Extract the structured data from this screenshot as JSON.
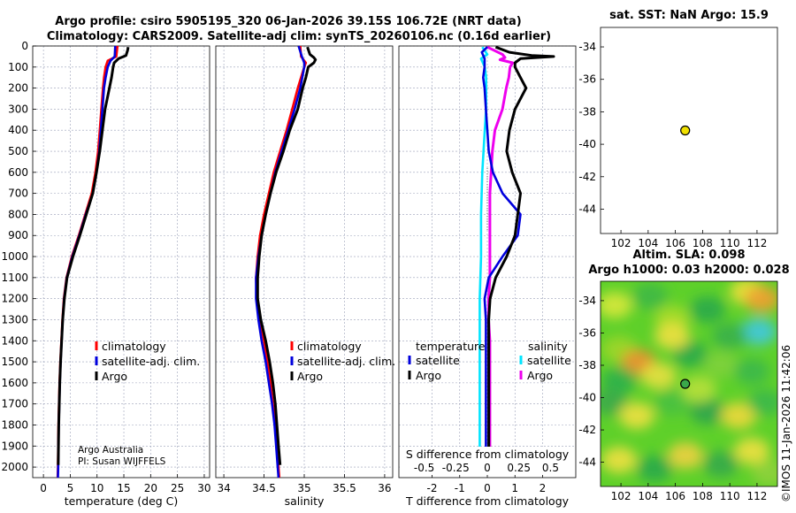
{
  "title_line1": "Argo profile: csiro 5905195_320 06-Jan-2026 39.15S 106.72E (NRT data)",
  "title_line2": "Climatology: CARS2009. Satellite-adj clim: synTS_20260106.nc (0.16d earlier)",
  "credit_line1": "Argo Australia",
  "credit_line2": "PI: Susan WIJFFELS",
  "copyright": "©IMOS 11-Jan-2026 11:42:06",
  "colors": {
    "climatology": "#ff0000",
    "satellite_adj": "#0000dd",
    "argo": "#000000",
    "sal_satellite": "#00e5ff",
    "sal_argo": "#ee00ee"
  },
  "chart_data": [
    {
      "id": "temperature",
      "type": "line",
      "xlabel": "temperature (deg C)",
      "ylabel": "",
      "xlim": [
        -2,
        31
      ],
      "ylim": [
        0,
        2050
      ],
      "y_reversed": true,
      "xticks": [
        0,
        5,
        10,
        15,
        20,
        25,
        30
      ],
      "yticks": [
        0,
        100,
        200,
        300,
        400,
        500,
        600,
        700,
        800,
        900,
        1000,
        1100,
        1200,
        1300,
        1400,
        1500,
        1600,
        1700,
        1800,
        1900,
        2000
      ],
      "legend": [
        "climatology",
        "satellite-adj. clim.",
        "Argo"
      ],
      "series": [
        {
          "name": "climatology",
          "depth": [
            0,
            50,
            70,
            100,
            150,
            200,
            300,
            400,
            500,
            600,
            700,
            800,
            900,
            1000,
            1100,
            1200,
            1300,
            1400,
            1500,
            1600,
            1700,
            1800,
            1900,
            2000,
            2050
          ],
          "values": [
            13.8,
            13.6,
            12.0,
            11.6,
            11.3,
            11.1,
            10.8,
            10.5,
            10.2,
            9.7,
            9.0,
            7.8,
            6.6,
            5.3,
            4.3,
            3.8,
            3.55,
            3.35,
            3.15,
            3.0,
            2.9,
            2.8,
            2.75,
            2.7,
            2.65
          ]
        },
        {
          "name": "satellite-adj. clim.",
          "depth": [
            0,
            50,
            70,
            100,
            150,
            200,
            300,
            400,
            500,
            600,
            700,
            800,
            900,
            1000,
            1100,
            1200,
            1300,
            1400,
            1500,
            1600,
            1700,
            1800,
            1900,
            2000,
            2050
          ],
          "values": [
            13.4,
            13.3,
            12.5,
            12.0,
            11.6,
            11.3,
            11.0,
            10.7,
            10.4,
            9.9,
            9.2,
            7.9,
            6.7,
            5.4,
            4.35,
            3.85,
            3.6,
            3.4,
            3.2,
            3.05,
            2.95,
            2.85,
            2.8,
            2.75,
            2.7
          ]
        },
        {
          "name": "Argo",
          "depth": [
            5,
            20,
            45,
            60,
            80,
            100,
            150,
            200,
            300,
            400,
            500,
            600,
            700,
            800,
            900,
            1000,
            1100,
            1200,
            1300,
            1400,
            1500,
            1600,
            1700,
            1800,
            1900,
            1990
          ],
          "values": [
            15.8,
            15.7,
            15.4,
            14.0,
            13.2,
            13.0,
            12.7,
            12.3,
            11.5,
            11.0,
            10.5,
            9.9,
            9.2,
            8.0,
            6.8,
            5.5,
            4.4,
            3.9,
            3.6,
            3.4,
            3.2,
            3.05,
            2.95,
            2.85,
            2.8,
            2.75
          ]
        }
      ]
    },
    {
      "id": "salinity",
      "type": "line",
      "xlabel": "salinity",
      "ylabel": "",
      "xlim": [
        33.9,
        36.1
      ],
      "ylim": [
        0,
        2050
      ],
      "y_reversed": true,
      "xticks": [
        34,
        34.5,
        35,
        35.5,
        36
      ],
      "legend": [
        "climatology",
        "satellite-adj. clim.",
        "Argo"
      ],
      "series": [
        {
          "name": "climatology",
          "depth": [
            0,
            50,
            80,
            100,
            200,
            300,
            400,
            500,
            600,
            700,
            800,
            900,
            1000,
            1100,
            1200,
            1300,
            1400,
            1500,
            1600,
            1700,
            1800,
            1900,
            2000,
            2050
          ],
          "values": [
            34.95,
            34.96,
            35.02,
            35.0,
            34.92,
            34.85,
            34.78,
            34.7,
            34.62,
            34.56,
            34.5,
            34.45,
            34.42,
            34.4,
            34.41,
            34.45,
            34.5,
            34.54,
            34.58,
            34.61,
            34.64,
            34.66,
            34.68,
            34.69
          ]
        },
        {
          "name": "satellite-adj. clim.",
          "depth": [
            0,
            50,
            80,
            100,
            200,
            300,
            400,
            500,
            600,
            700,
            800,
            900,
            1000,
            1100,
            1200,
            1300,
            1400,
            1500,
            1600,
            1700,
            1800,
            1900,
            2000,
            2050
          ],
          "values": [
            34.93,
            34.97,
            35.0,
            35.0,
            34.95,
            34.88,
            34.8,
            34.72,
            34.64,
            34.58,
            34.52,
            34.47,
            34.43,
            34.4,
            34.4,
            34.43,
            34.47,
            34.52,
            34.56,
            34.6,
            34.63,
            34.65,
            34.67,
            34.68
          ]
        },
        {
          "name": "Argo",
          "depth": [
            5,
            40,
            55,
            65,
            80,
            100,
            150,
            200,
            300,
            400,
            500,
            600,
            700,
            800,
            900,
            1000,
            1100,
            1200,
            1300,
            1400,
            1500,
            1600,
            1700,
            1800,
            1900,
            1990
          ],
          "values": [
            35.04,
            35.07,
            35.12,
            35.14,
            35.12,
            35.05,
            35.02,
            34.98,
            34.92,
            34.82,
            34.74,
            34.65,
            34.58,
            34.52,
            34.47,
            34.44,
            34.42,
            34.42,
            34.46,
            34.52,
            34.57,
            34.61,
            34.64,
            34.66,
            34.68,
            34.7
          ]
        }
      ]
    },
    {
      "id": "difference",
      "type": "line",
      "xlabel": "T difference from climatology",
      "xlabel_top": "S difference from climatology",
      "xlim": [
        -3.2,
        3.2
      ],
      "ylim": [
        0,
        2050
      ],
      "y_reversed": true,
      "xticks": [
        -2,
        -1,
        0,
        1,
        2
      ],
      "xticks_salinity": [
        -0.5,
        -0.25,
        0,
        0.25,
        0.5
      ],
      "legend_titles": [
        "temperature",
        "salinity"
      ],
      "legend_temperature": [
        "satellite",
        "Argo"
      ],
      "legend_salinity": [
        "satellite",
        "Argo"
      ],
      "series": [
        {
          "name": "T satellite",
          "depth": [
            5,
            30,
            60,
            100,
            150,
            200,
            300,
            400,
            500,
            600,
            700,
            800,
            900,
            1000,
            1100,
            1200,
            1300,
            1400,
            1500,
            1600,
            1700,
            1800,
            1900,
            1990
          ],
          "values": [
            0.0,
            -0.2,
            -0.1,
            -0.1,
            -0.15,
            -0.1,
            -0.05,
            0.0,
            0.05,
            0.2,
            0.55,
            1.2,
            1.1,
            0.55,
            0.05,
            -0.1,
            -0.05,
            -0.05,
            -0.05,
            -0.05,
            -0.05,
            -0.05,
            -0.05,
            -0.05
          ]
        },
        {
          "name": "T Argo",
          "depth": [
            5,
            30,
            45,
            50,
            60,
            80,
            100,
            150,
            200,
            300,
            400,
            500,
            600,
            700,
            800,
            900,
            1000,
            1100,
            1200,
            1300,
            1400,
            1500,
            1600,
            1700,
            1800,
            1900,
            1990
          ],
          "values": [
            0.3,
            0.8,
            1.6,
            2.4,
            1.2,
            1.0,
            1.0,
            1.2,
            1.4,
            1.0,
            0.8,
            0.7,
            0.9,
            1.2,
            1.1,
            1.0,
            0.7,
            0.3,
            0.1,
            0.05,
            0.05,
            0.05,
            0.05,
            0.05,
            0.05,
            0.05,
            0.05
          ]
        },
        {
          "name": "S satellite",
          "depth": [
            5,
            40,
            60,
            100,
            150,
            200,
            300,
            400,
            500,
            600,
            800,
            1000,
            1200,
            1400,
            1600,
            1800,
            1990
          ],
          "values": [
            -0.04,
            0.0,
            -0.05,
            -0.02,
            -0.01,
            -0.01,
            -0.01,
            -0.02,
            -0.03,
            -0.04,
            -0.05,
            -0.05,
            -0.06,
            -0.06,
            -0.06,
            -0.06,
            -0.06
          ]
        },
        {
          "name": "S Argo",
          "depth": [
            5,
            40,
            55,
            65,
            80,
            100,
            150,
            200,
            300,
            400,
            500,
            600,
            700,
            800,
            900,
            1000,
            1100,
            1200,
            1300,
            1400,
            1500,
            1600,
            1700,
            1800,
            1900,
            1990
          ],
          "values": [
            0.0,
            0.12,
            0.14,
            0.1,
            0.2,
            0.18,
            0.17,
            0.15,
            0.12,
            0.06,
            0.04,
            0.03,
            0.02,
            0.02,
            0.02,
            0.02,
            0.02,
            0.01,
            0.01,
            0.02,
            0.02,
            0.02,
            0.02,
            0.02,
            0.02,
            0.02
          ]
        }
      ]
    },
    {
      "id": "sst_map",
      "type": "scatter",
      "title": "sat. SST: NaN Argo: 15.9",
      "xlim": [
        100.5,
        113.5
      ],
      "ylim": [
        -45.5,
        -32.8
      ],
      "xticks": [
        102,
        104,
        106,
        108,
        110,
        112
      ],
      "yticks": [
        -34,
        -36,
        -38,
        -40,
        -42,
        -44
      ],
      "point": {
        "lon": 106.72,
        "lat": -39.15
      }
    },
    {
      "id": "sla_map",
      "type": "heatmap",
      "title_line1": "Altim. SLA: 0.098",
      "title_line2": "Argo h1000: 0.03 h2000: 0.028",
      "xlim": [
        100.5,
        113.5
      ],
      "ylim": [
        -45.5,
        -32.8
      ],
      "xticks": [
        102,
        104,
        106,
        108,
        110,
        112
      ],
      "yticks": [
        -34,
        -36,
        -38,
        -40,
        -42,
        -44
      ],
      "point": {
        "lon": 106.72,
        "lat": -39.15
      }
    }
  ]
}
